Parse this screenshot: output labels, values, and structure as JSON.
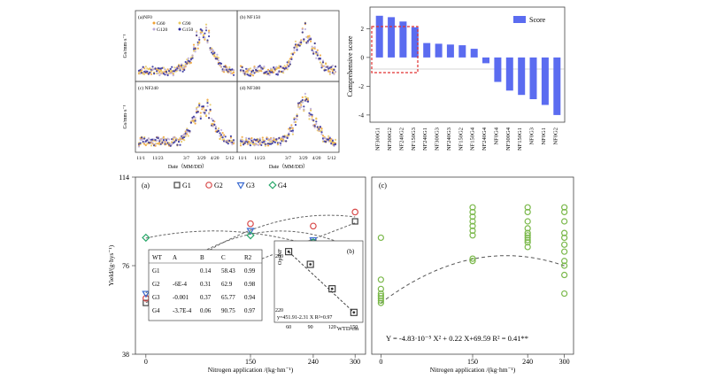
{
  "chart_data": [
    {
      "type": "scatter",
      "panel": "time-series",
      "ylabel": "Gs/mm·s⁻¹",
      "xlabel": "Date（MM/DD）",
      "x_ticks": [
        "11/1",
        "11/23",
        "3/7",
        "3/29",
        "4/20",
        "5/12"
      ],
      "legend": [
        "G60",
        "G90",
        "G120",
        "G150"
      ],
      "series_colors": [
        "#f0a030",
        "#e8c860",
        "#b8a8d8",
        "#2a2a9a"
      ],
      "subplots": [
        {
          "label": "(a)NF0",
          "position": "top-left"
        },
        {
          "label": "(b) NF150",
          "position": "top-right"
        },
        {
          "label": "(c) NF240",
          "position": "bottom-left"
        },
        {
          "label": "(d) NF300",
          "position": "bottom-right"
        }
      ]
    },
    {
      "type": "bar",
      "panel": "comprehensive-score",
      "ylabel": "Comprehensive score",
      "legend": [
        "Score"
      ],
      "color": "#5b6cf0",
      "categories": [
        "NF300G1",
        "NF300G2",
        "NF240G2",
        "NF150G3",
        "NF240G1",
        "NF300G3",
        "NF240G3",
        "NF150G2",
        "NF150G4",
        "NF240G4",
        "NF0G4",
        "NF300G4",
        "NF150G1",
        "NF0G3",
        "NF0G1",
        "NF0G2"
      ],
      "values": [
        2.9,
        2.8,
        2.5,
        2.1,
        1.0,
        0.95,
        0.9,
        0.85,
        0.6,
        -0.4,
        -1.7,
        -2.3,
        -2.6,
        -2.9,
        -3.3,
        -4.0
      ],
      "ylim": [
        -4.5,
        3.5
      ],
      "y_ticks": [
        -4,
        -2,
        0,
        2
      ],
      "highlight_first_n": 4
    },
    {
      "type": "scatter",
      "panel": "(a)",
      "xlabel": "Nitrogen application /(kg·hm⁻¹)",
      "ylabel": "Yield/(g·hys⁻¹)",
      "xlim": [
        -15,
        315
      ],
      "ylim": [
        38,
        114
      ],
      "x_ticks": [
        0,
        150,
        240,
        300
      ],
      "y_ticks": [
        38,
        76,
        114
      ],
      "x": [
        0,
        150,
        240,
        300
      ],
      "series": [
        {
          "name": "G1",
          "marker": "square",
          "color": "#444444",
          "values": [
            60,
            78,
            86,
            95
          ]
        },
        {
          "name": "G2",
          "marker": "circle",
          "color": "#d84a4a",
          "values": [
            62,
            94,
            93,
            99
          ]
        },
        {
          "name": "G3",
          "marker": "triangle",
          "color": "#3a6ad0",
          "values": [
            64,
            91,
            87,
            84
          ]
        },
        {
          "name": "G4",
          "marker": "diamond",
          "color": "#2aa86a",
          "values": [
            88,
            89,
            86,
            77
          ]
        }
      ],
      "table": {
        "headers": [
          "WT",
          "A",
          "B",
          "C",
          "R2"
        ],
        "rows": [
          [
            "G1",
            "",
            "0.14",
            "58.43",
            "0.99"
          ],
          [
            "G2",
            "-6E-4",
            "0.31",
            "62.9",
            "0.98"
          ],
          [
            "G3",
            "-0.001",
            "0.37",
            "65.77",
            "0.94"
          ],
          [
            "G4",
            "-3.7E-4",
            "0.06",
            "90.75",
            "0.97"
          ]
        ]
      }
    },
    {
      "type": "scatter",
      "panel": "(b)",
      "ylabel": "Op-NF",
      "xlabel": "WTD/cm",
      "xlim": [
        55,
        160
      ],
      "ylim": [
        208,
        292
      ],
      "x_ticks": [
        60,
        90,
        120,
        150
      ],
      "y_ticks": [
        220,
        280
      ],
      "x": [
        60,
        90,
        120,
        150
      ],
      "values": [
        284,
        270,
        243,
        217
      ],
      "equation": "y=451.91-2.31 X  R²=0.97"
    },
    {
      "type": "scatter",
      "panel": "(c)",
      "xlabel": "Nitrogen application /(kg·hm⁻¹)",
      "x_ticks": [
        0,
        150,
        240,
        300
      ],
      "xlim": [
        -15,
        315
      ],
      "ylim": [
        38,
        114
      ],
      "color": "#7ab84a",
      "points": [
        [
          0,
          60
        ],
        [
          0,
          61
        ],
        [
          0,
          62
        ],
        [
          0,
          63
        ],
        [
          0,
          64
        ],
        [
          0,
          66
        ],
        [
          0,
          70
        ],
        [
          0,
          88
        ],
        [
          150,
          78
        ],
        [
          150,
          79
        ],
        [
          150,
          89
        ],
        [
          150,
          91
        ],
        [
          150,
          93
        ],
        [
          150,
          95
        ],
        [
          150,
          97
        ],
        [
          150,
          99
        ],
        [
          150,
          101
        ],
        [
          240,
          84
        ],
        [
          240,
          86
        ],
        [
          240,
          87
        ],
        [
          240,
          88
        ],
        [
          240,
          89
        ],
        [
          240,
          90
        ],
        [
          240,
          92
        ],
        [
          240,
          95
        ],
        [
          240,
          99
        ],
        [
          240,
          101
        ],
        [
          300,
          64
        ],
        [
          300,
          72
        ],
        [
          300,
          76
        ],
        [
          300,
          78
        ],
        [
          300,
          82
        ],
        [
          300,
          85
        ],
        [
          300,
          88
        ],
        [
          300,
          90
        ],
        [
          300,
          95
        ],
        [
          300,
          99
        ],
        [
          300,
          101
        ]
      ],
      "equation": "Y = -4.83·10⁻⁵ X² + 0.22 X+69.59  R² = 0.41**"
    }
  ]
}
